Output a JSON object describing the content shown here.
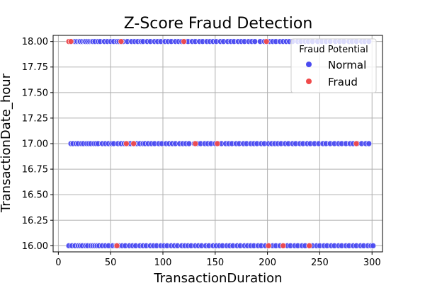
{
  "chart_data": {
    "type": "scatter",
    "title": "Z-Score Fraud Detection",
    "xlabel": "TransactionDuration",
    "ylabel": "TransactionDate_hour",
    "xlim": [
      -5,
      310
    ],
    "ylim": [
      15.94,
      18.06
    ],
    "x_ticks": [
      0,
      50,
      100,
      150,
      200,
      250,
      300
    ],
    "y_ticks": [
      16.0,
      16.25,
      16.5,
      16.75,
      17.0,
      17.25,
      17.5,
      17.75,
      18.0
    ],
    "y_tick_labels": [
      "16.00",
      "16.25",
      "16.50",
      "16.75",
      "17.00",
      "17.25",
      "17.50",
      "17.75",
      "18.00"
    ],
    "grid": true,
    "legend": {
      "title": "Fraud Potential",
      "placement": "top-right",
      "entries": [
        "Normal",
        "Fraud"
      ]
    },
    "colors": {
      "Normal": "#4a4af0",
      "Fraud": "#f04a4a",
      "grid": "#b0b0b0",
      "marker_edge": "#ffffff"
    },
    "series": [
      {
        "name": "Normal",
        "x": [
          10,
          12,
          15,
          16,
          18,
          20,
          21,
          23,
          25,
          26,
          28,
          30,
          32,
          33,
          35,
          38,
          40,
          44,
          47,
          50,
          53,
          56,
          58,
          62,
          66,
          70,
          73,
          76,
          79,
          81,
          85,
          88,
          92,
          95,
          98,
          102,
          105,
          108,
          112,
          115,
          118,
          121,
          124,
          128,
          131,
          135,
          138,
          142,
          145,
          148,
          151,
          155,
          158,
          162,
          165,
          168,
          172,
          175,
          178,
          182,
          185,
          188,
          193,
          197,
          202,
          205,
          208,
          212,
          215,
          218,
          221,
          224,
          229,
          232,
          236,
          239,
          243,
          248,
          252,
          256,
          260,
          265,
          269,
          273,
          278,
          281,
          285,
          290,
          293,
          297,
          12,
          14,
          17,
          19,
          22,
          24,
          27,
          29,
          31,
          34,
          36,
          38,
          42,
          45,
          48,
          51,
          53,
          57,
          60,
          63,
          67,
          69,
          72,
          75,
          78,
          81,
          83,
          86,
          89,
          92,
          96,
          99,
          103,
          106,
          109,
          112,
          116,
          119,
          122,
          125,
          130,
          133,
          136,
          140,
          143,
          146,
          150,
          153,
          156,
          160,
          163,
          166,
          170,
          173,
          177,
          180,
          184,
          187,
          190,
          194,
          197,
          201,
          204,
          207,
          210,
          213,
          217,
          220,
          224,
          227,
          231,
          234,
          238,
          241,
          245,
          249,
          253,
          256,
          260,
          264,
          268,
          271,
          275,
          279,
          282,
          286,
          290,
          294,
          297,
          10,
          13,
          16,
          19,
          21,
          23,
          26,
          28,
          31,
          33,
          35,
          37,
          39,
          42,
          45,
          48,
          52,
          55,
          58,
          61,
          64,
          68,
          71,
          74,
          78,
          81,
          84,
          88,
          91,
          94,
          98,
          101,
          104,
          108,
          111,
          114,
          118,
          121,
          124,
          127,
          131,
          134,
          137,
          141,
          144,
          148,
          151,
          154,
          157,
          161,
          164,
          167,
          171,
          174,
          178,
          181,
          184,
          187,
          191,
          194,
          198,
          201,
          205,
          208,
          212,
          215,
          219,
          222,
          226,
          229,
          233,
          236,
          240,
          243,
          247,
          250,
          254,
          257,
          261,
          264,
          268,
          271,
          275,
          278,
          282,
          285,
          289,
          292,
          296,
          299,
          301
        ],
        "y": [
          18,
          18,
          18,
          18,
          18,
          18,
          18,
          18,
          18,
          18,
          18,
          18,
          18,
          18,
          18,
          18,
          18,
          18,
          18,
          18,
          18,
          18,
          18,
          18,
          18,
          18,
          18,
          18,
          18,
          18,
          18,
          18,
          18,
          18,
          18,
          18,
          18,
          18,
          18,
          18,
          18,
          18,
          18,
          18,
          18,
          18,
          18,
          18,
          18,
          18,
          18,
          18,
          18,
          18,
          18,
          18,
          18,
          18,
          18,
          18,
          18,
          18,
          18,
          18,
          18,
          18,
          18,
          18,
          18,
          18,
          18,
          18,
          18,
          18,
          18,
          18,
          18,
          18,
          18,
          18,
          18,
          18,
          18,
          18,
          18,
          18,
          18,
          18,
          18,
          18,
          17,
          17,
          17,
          17,
          17,
          17,
          17,
          17,
          17,
          17,
          17,
          17,
          17,
          17,
          17,
          17,
          17,
          17,
          17,
          17,
          17,
          17,
          17,
          17,
          17,
          17,
          17,
          17,
          17,
          17,
          17,
          17,
          17,
          17,
          17,
          17,
          17,
          17,
          17,
          17,
          17,
          17,
          17,
          17,
          17,
          17,
          17,
          17,
          17,
          17,
          17,
          17,
          17,
          17,
          17,
          17,
          17,
          17,
          17,
          17,
          17,
          17,
          17,
          17,
          17,
          17,
          17,
          17,
          17,
          17,
          17,
          17,
          17,
          17,
          17,
          17,
          17,
          17,
          17,
          17,
          17,
          17,
          17,
          17,
          17,
          17,
          17,
          17,
          17,
          16,
          16,
          16,
          16,
          16,
          16,
          16,
          16,
          16,
          16,
          16,
          16,
          16,
          16,
          16,
          16,
          16,
          16,
          16,
          16,
          16,
          16,
          16,
          16,
          16,
          16,
          16,
          16,
          16,
          16,
          16,
          16,
          16,
          16,
          16,
          16,
          16,
          16,
          16,
          16,
          16,
          16,
          16,
          16,
          16,
          16,
          16,
          16,
          16,
          16,
          16,
          16,
          16,
          16,
          16,
          16,
          16,
          16,
          16,
          16,
          16,
          16,
          16,
          16,
          16,
          16,
          16,
          16,
          16,
          16,
          16,
          16,
          16,
          16,
          16,
          16,
          16,
          16,
          16,
          16,
          16,
          16,
          16,
          16,
          16,
          16,
          16,
          16,
          16,
          16,
          16
        ]
      },
      {
        "name": "Fraud",
        "x": [
          10,
          12,
          60,
          120,
          199,
          65,
          72,
          131,
          152,
          285,
          56,
          201,
          215,
          240
        ],
        "y": [
          18,
          18,
          18,
          18,
          18,
          17,
          17,
          17,
          17,
          17,
          16,
          16,
          16,
          16
        ]
      }
    ]
  }
}
